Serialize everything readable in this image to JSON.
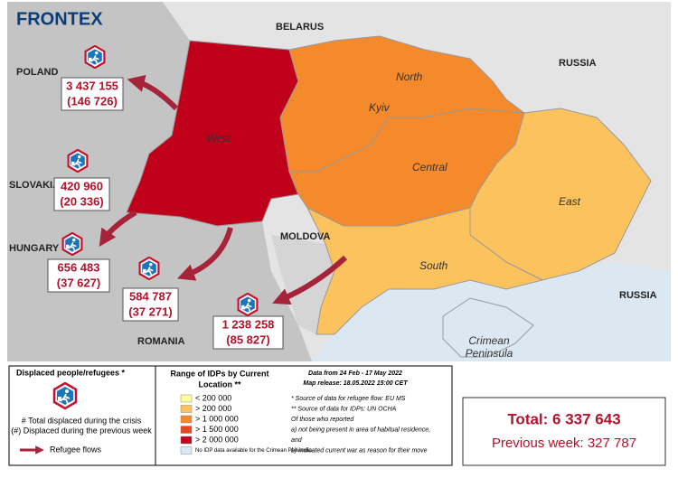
{
  "header": {
    "logo": "FRONTEX"
  },
  "countries": [
    "BELARUS",
    "RUSSIA",
    "POLAND",
    "SLOVAKIA",
    "HUNGARY",
    "MOLDOVA",
    "ROMANIA",
    "RUSSIA"
  ],
  "regions": [
    "North",
    "Kyiv",
    "West",
    "Central",
    "East",
    "South",
    [
      "Crimean",
      "Peninsula"
    ]
  ],
  "flows": [
    {
      "total": "3 437 155",
      "previous": "(146 726)"
    },
    {
      "total": "420 960",
      "previous": "(20 336)"
    },
    {
      "total": "656 483",
      "previous": "(37 627)"
    },
    {
      "total": "584 787",
      "previous": "(37 271)"
    },
    {
      "total": "1 238 258",
      "previous": "(85 827)"
    }
  ],
  "legend": {
    "refugees": {
      "title": "Displaced people/refugees *",
      "total": "# Total displaced during the crisis",
      "previous": "(#) Displaced during the previous week",
      "flows": "Refugee flows"
    },
    "idp": {
      "title": [
        "Range of IDPs by Current",
        "Location **"
      ],
      "ranges": [
        "< 200 000",
        "> 200 000",
        "> 1 000 000",
        "> 1 500 000",
        "> 2 000 000",
        "No IDP data available for the Crimean Peninsula"
      ]
    }
  },
  "notes": [
    "Data from 24 Feb - 17 May 2022",
    "Map release: 18.05.2022 15:00 CET",
    "* Source of data for refugee flow: EU MS",
    "** Source of data for IDPs:  UN OCHA",
    "Of those who reported",
    "a) not being present in area of habitual residence,",
    "and",
    "b) indicated current war as reason for their move"
  ],
  "totals": {
    "total": "Total: 6 337 643",
    "previous": "Previous week:  327 787"
  }
}
